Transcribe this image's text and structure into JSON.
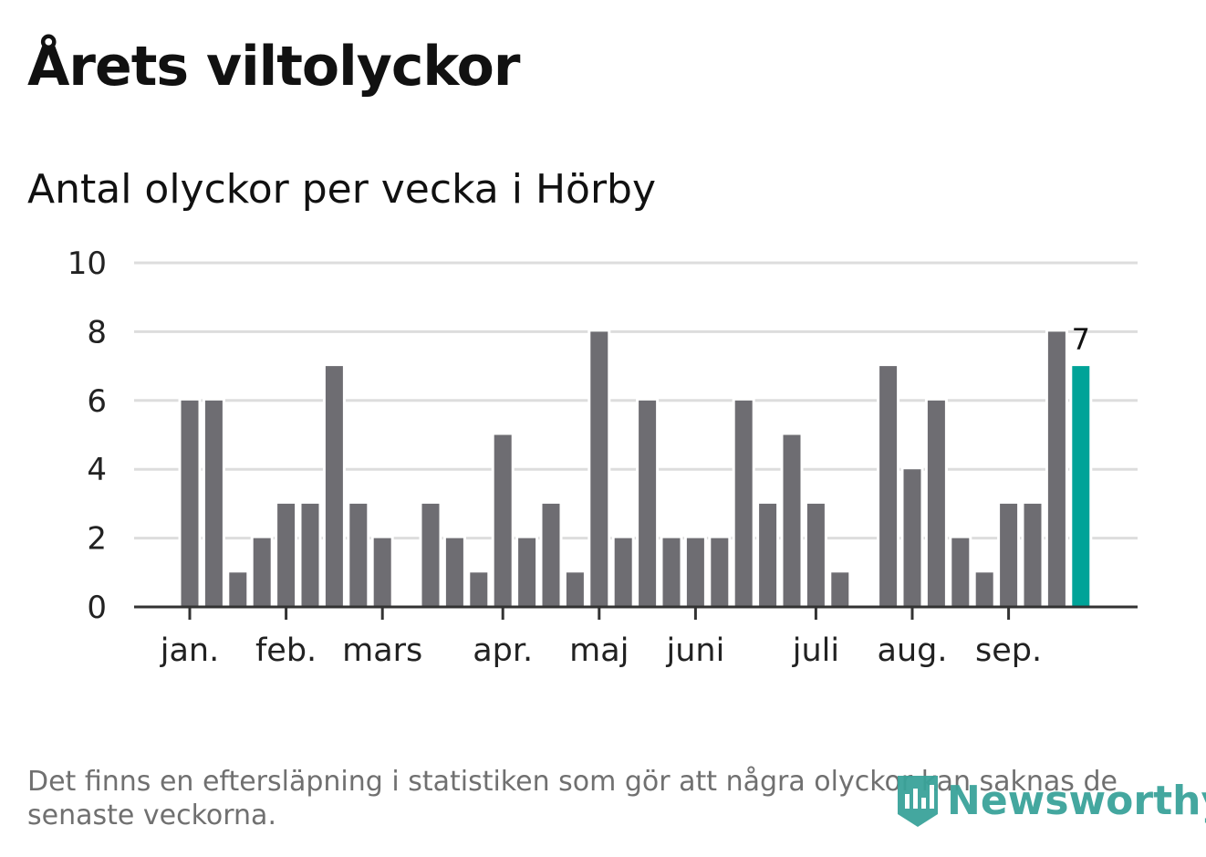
{
  "title": "Årets viltolyckor",
  "subtitle": "Antal olyckor per vecka i Hörby",
  "note": "Det finns en eftersläpning i statistiken som gör att några olyckor kan saknas de senaste veckorna.",
  "logo": "Newsworthy",
  "colors": {
    "bar": "#6e6d72",
    "highlight": "#00a398",
    "grid": "#dddddd",
    "axis": "#333333"
  },
  "chart_data": {
    "type": "bar",
    "title": "Antal olyckor per vecka i Hörby",
    "xlabel": "",
    "ylabel": "",
    "ylim": [
      0,
      10
    ],
    "yticks": [
      0,
      2,
      4,
      6,
      8,
      10
    ],
    "grid": true,
    "values": [
      6,
      6,
      1,
      2,
      3,
      3,
      7,
      3,
      2,
      0,
      3,
      2,
      1,
      5,
      2,
      3,
      1,
      8,
      2,
      6,
      2,
      2,
      2,
      6,
      3,
      5,
      3,
      1,
      0,
      7,
      4,
      6,
      2,
      1,
      3,
      3,
      8,
      7
    ],
    "highlight_last": true,
    "last_label": "7",
    "month_ticks": [
      {
        "label": "jan.",
        "week_index": 0
      },
      {
        "label": "feb.",
        "week_index": 4
      },
      {
        "label": "mars",
        "week_index": 8
      },
      {
        "label": "apr.",
        "week_index": 13
      },
      {
        "label": "maj",
        "week_index": 17
      },
      {
        "label": "juni",
        "week_index": 21
      },
      {
        "label": "juli",
        "week_index": 26
      },
      {
        "label": "aug.",
        "week_index": 30
      },
      {
        "label": "sep.",
        "week_index": 34
      }
    ]
  }
}
